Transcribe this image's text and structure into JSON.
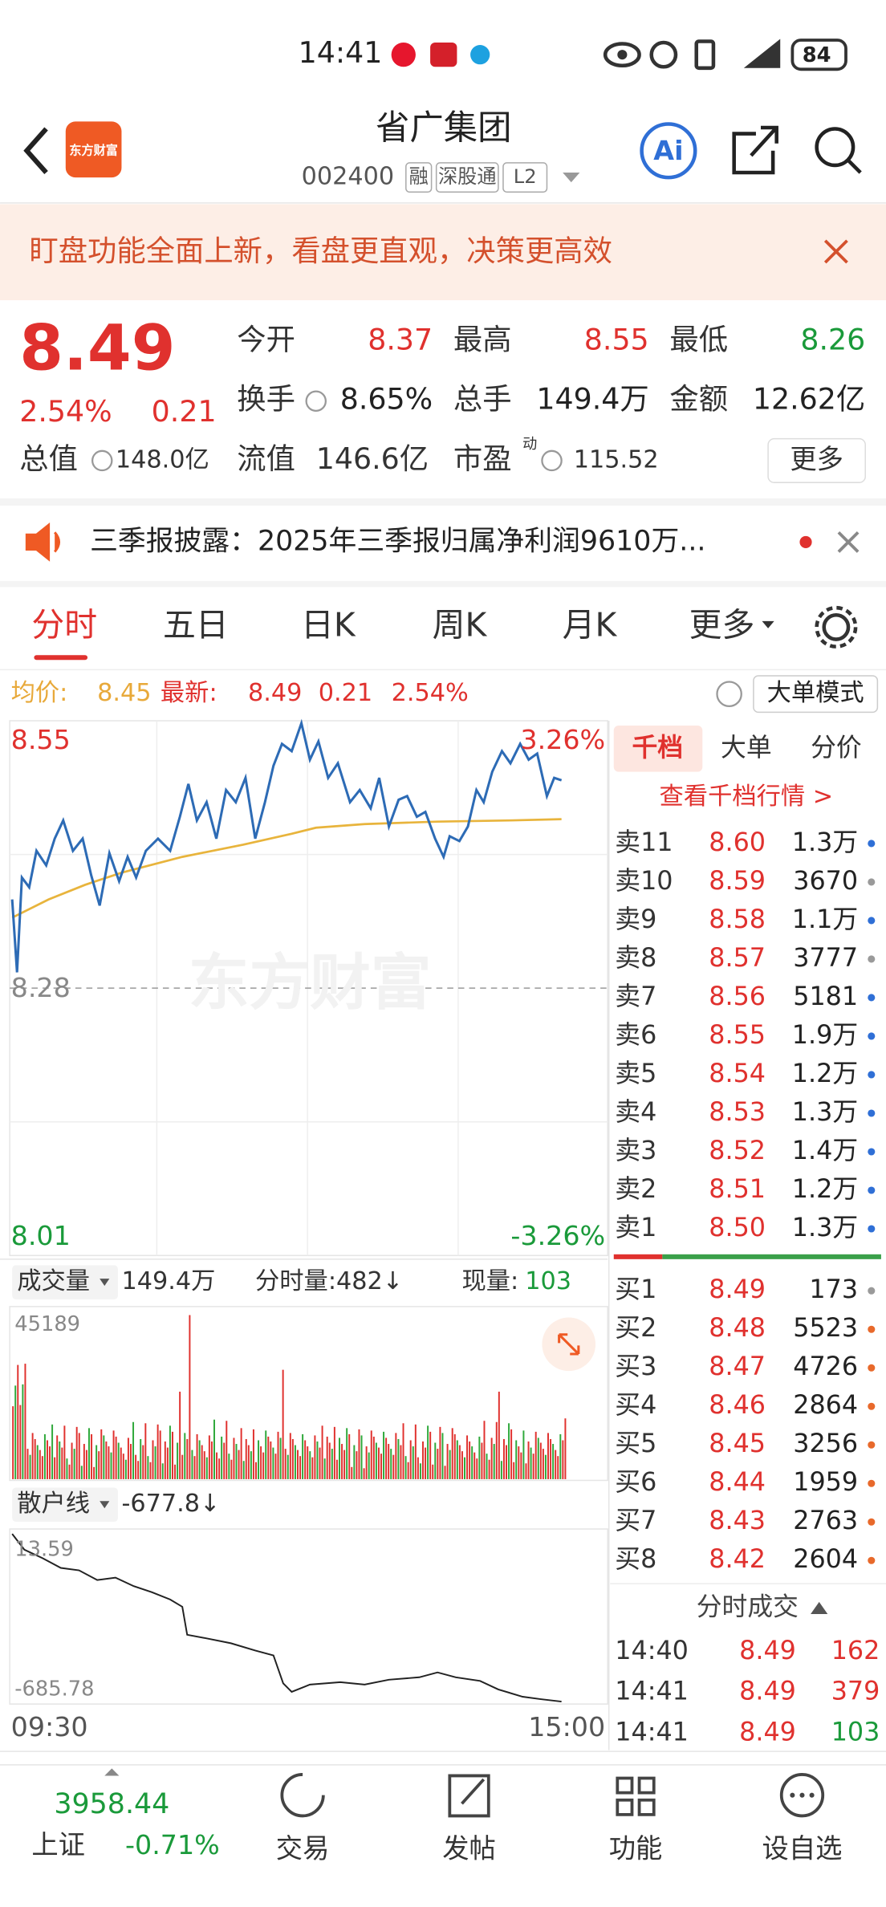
{
  "status_bar": {
    "time": "14:41",
    "battery": "84"
  },
  "header": {
    "logo": "东方财富",
    "title": "省广集团",
    "code": "002400",
    "tags": [
      "融",
      "深股通",
      "L2"
    ]
  },
  "banner": {
    "text": "盯盘功能全面上新，看盘更直观，决策更高效"
  },
  "quote": {
    "price": "8.49",
    "change_pct": "2.54%",
    "change": "0.21",
    "stats": [
      {
        "label": "今开",
        "value": "8.37",
        "tone": "up"
      },
      {
        "label": "最高",
        "value": "8.55",
        "tone": "up"
      },
      {
        "label": "最低",
        "value": "8.26",
        "tone": "down"
      },
      {
        "label": "换手",
        "value": "8.65%",
        "tone": "flat"
      },
      {
        "label": "总手",
        "value": "149.4万",
        "tone": "flat"
      },
      {
        "label": "金额",
        "value": "12.62亿",
        "tone": "flat"
      }
    ],
    "row3": [
      {
        "label": "总值",
        "value": "148.0亿"
      },
      {
        "label": "流值",
        "value": "146.6亿"
      },
      {
        "label": "市盈",
        "sup": "动",
        "value": "115.52"
      }
    ],
    "more": "更多"
  },
  "notice": {
    "text": "三季报披露：2025年三季报归属净利润9610万..."
  },
  "tabs": [
    "分时",
    "五日",
    "日K",
    "周K",
    "月K",
    "更多"
  ],
  "chart_info": {
    "avg_label": "均价:",
    "avg": "8.45",
    "latest_label": "最新:",
    "latest": "8.49",
    "change": "0.21",
    "pct": "2.54%",
    "mode": "大单模式"
  },
  "price_axis": {
    "top": "8.55",
    "mid": "8.28",
    "bottom": "8.01",
    "pct_top": "3.26%",
    "pct_bottom": "-3.26%",
    "watermark": "东方财富"
  },
  "volume": {
    "label": "成交量",
    "total": "149.4万",
    "minute": "分时量:482↓",
    "current_label": "现量:",
    "current": "103",
    "max": "45189"
  },
  "retail": {
    "label": "散户线",
    "value": "-677.8↓",
    "top": "13.59",
    "bottom": "-685.78"
  },
  "time_axis": [
    "09:30",
    "15:00"
  ],
  "order_book": {
    "tabs": [
      "千档",
      "大单",
      "分价"
    ],
    "link": "查看千档行情 >",
    "asks": [
      {
        "label": "卖11",
        "price": "8.60",
        "volume": "1.3万",
        "dot": "#2f6fd6"
      },
      {
        "label": "卖10",
        "price": "8.59",
        "volume": "3670",
        "dot": "#9a9a9a"
      },
      {
        "label": "卖9",
        "price": "8.58",
        "volume": "1.1万",
        "dot": "#2f6fd6"
      },
      {
        "label": "卖8",
        "price": "8.57",
        "volume": "3777",
        "dot": "#9a9a9a"
      },
      {
        "label": "卖7",
        "price": "8.56",
        "volume": "5181",
        "dot": "#2f6fd6"
      },
      {
        "label": "卖6",
        "price": "8.55",
        "volume": "1.9万",
        "dot": "#2f6fd6"
      },
      {
        "label": "卖5",
        "price": "8.54",
        "volume": "1.2万",
        "dot": "#2f6fd6"
      },
      {
        "label": "卖4",
        "price": "8.53",
        "volume": "1.3万",
        "dot": "#2f6fd6"
      },
      {
        "label": "卖3",
        "price": "8.52",
        "volume": "1.4万",
        "dot": "#2f6fd6"
      },
      {
        "label": "卖2",
        "price": "8.51",
        "volume": "1.2万",
        "dot": "#2f6fd6"
      },
      {
        "label": "卖1",
        "price": "8.50",
        "volume": "1.3万",
        "dot": "#2f6fd6"
      }
    ],
    "bids": [
      {
        "label": "买1",
        "price": "8.49",
        "volume": "173",
        "dot": "#9a9a9a"
      },
      {
        "label": "买2",
        "price": "8.48",
        "volume": "5523",
        "dot": "#e8692b"
      },
      {
        "label": "买3",
        "price": "8.47",
        "volume": "4726",
        "dot": "#e8692b"
      },
      {
        "label": "买4",
        "price": "8.46",
        "volume": "2864",
        "dot": "#e8692b"
      },
      {
        "label": "买5",
        "price": "8.45",
        "volume": "3256",
        "dot": "#e8692b"
      },
      {
        "label": "买6",
        "price": "8.44",
        "volume": "1959",
        "dot": "#e8692b"
      },
      {
        "label": "买7",
        "price": "8.43",
        "volume": "2763",
        "dot": "#e8692b"
      },
      {
        "label": "买8",
        "price": "8.42",
        "volume": "2604",
        "dot": "#e8692b"
      }
    ],
    "trades_title": "分时成交",
    "trades": [
      {
        "time": "14:40",
        "price": "8.49",
        "volume": "162",
        "tone": "up"
      },
      {
        "time": "14:41",
        "price": "8.49",
        "volume": "379",
        "tone": "up"
      },
      {
        "time": "14:41",
        "price": "8.49",
        "volume": "103",
        "tone": "down"
      }
    ]
  },
  "bottom_nav": {
    "index_value": "3958.44",
    "index_name": "上证",
    "index_change": "-0.71%",
    "items": [
      "交易",
      "发帖",
      "功能",
      "设自选"
    ]
  }
}
